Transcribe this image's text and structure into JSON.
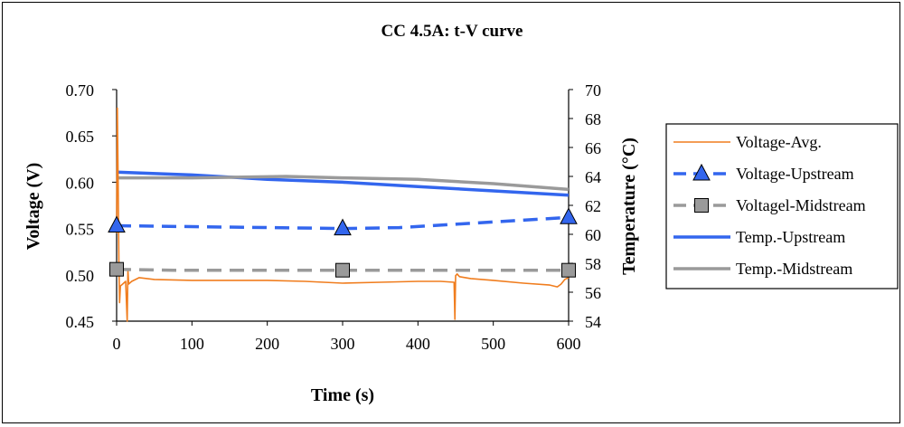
{
  "chart_data": {
    "type": "line",
    "title": "CC 4.5A: t-V curve",
    "xlabel": "Time (s)",
    "ylabel_left": "Voltage (V)",
    "ylabel_right": "Temperature (°C)",
    "xlim": [
      0,
      600
    ],
    "ylim_left": [
      0.45,
      0.7
    ],
    "ylim_right": [
      54,
      70
    ],
    "x_ticks": [
      "0",
      "100",
      "200",
      "300",
      "400",
      "500",
      "600"
    ],
    "y_ticks_left": [
      "0.45",
      "0.50",
      "0.55",
      "0.60",
      "0.65",
      "0.70"
    ],
    "y_ticks_right": [
      "54",
      "56",
      "58",
      "60",
      "62",
      "64",
      "66",
      "68",
      "70"
    ],
    "grid": false,
    "legend_position": "right",
    "series": [
      {
        "name": "Voltage-Avg.",
        "axis": "left",
        "color": "#f07d1e",
        "style": "solid-thin",
        "x": [
          0,
          1,
          2,
          3,
          4,
          5,
          8,
          12,
          14,
          15,
          16,
          20,
          30,
          50,
          100,
          150,
          200,
          250,
          300,
          350,
          400,
          430,
          448,
          449,
          450,
          452,
          455,
          470,
          500,
          540,
          575,
          585,
          590,
          595,
          600
        ],
        "y": [
          0.545,
          0.68,
          0.6,
          0.515,
          0.47,
          0.488,
          0.49,
          0.493,
          0.45,
          0.506,
          0.49,
          0.493,
          0.497,
          0.495,
          0.494,
          0.494,
          0.494,
          0.493,
          0.491,
          0.492,
          0.493,
          0.493,
          0.492,
          0.452,
          0.499,
          0.501,
          0.498,
          0.496,
          0.494,
          0.491,
          0.489,
          0.487,
          0.49,
          0.495,
          0.497
        ]
      },
      {
        "name": "Voltage-Upstream",
        "axis": "left",
        "color": "#3366ee",
        "style": "dashed",
        "marker": "triangle",
        "x": [
          0,
          300,
          375,
          600
        ],
        "y": [
          0.553,
          0.55,
          0.551,
          0.562
        ],
        "marker_x": [
          0,
          300,
          600
        ]
      },
      {
        "name": "Voltagel-Midstream",
        "axis": "left",
        "color": "#9a9a9a",
        "style": "dashed",
        "marker": "square",
        "x": [
          0,
          75,
          300,
          600
        ],
        "y": [
          0.506,
          0.505,
          0.505,
          0.505
        ],
        "marker_x": [
          0,
          300,
          600
        ]
      },
      {
        "name": "Temp.-Upstream",
        "axis": "right",
        "color": "#3366ee",
        "style": "solid-thick",
        "x": [
          0,
          100,
          200,
          300,
          400,
          500,
          600
        ],
        "y": [
          64.3,
          64.1,
          63.8,
          63.6,
          63.3,
          63.0,
          62.7
        ]
      },
      {
        "name": "Temp.-Midstream",
        "axis": "right",
        "color": "#9a9a9a",
        "style": "solid-thick",
        "x": [
          0,
          100,
          225,
          300,
          400,
          500,
          600
        ],
        "y": [
          63.9,
          63.9,
          64.0,
          63.9,
          63.8,
          63.5,
          63.1
        ]
      }
    ]
  }
}
